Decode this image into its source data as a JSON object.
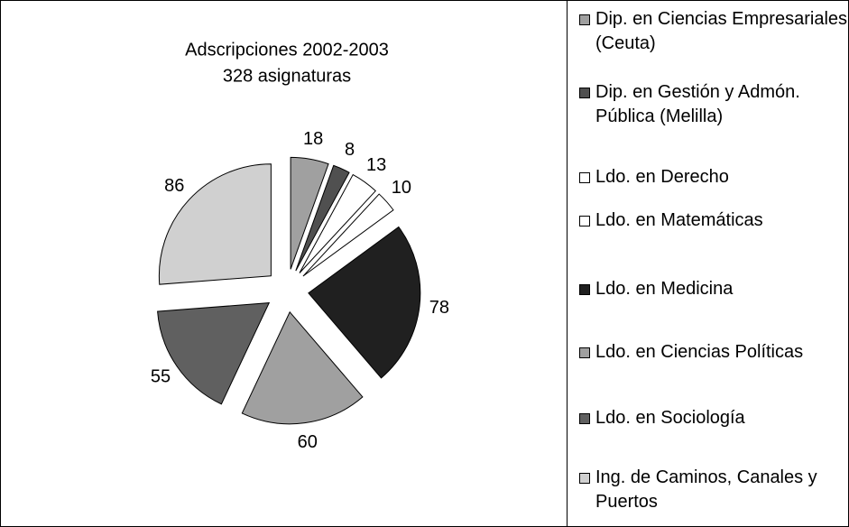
{
  "chart_data": {
    "type": "pie",
    "title": "Adscripciones 2002-2003",
    "subtitle": "328 asignaturas",
    "categories": [
      "Dip. en Ciencias Empresariales (Ceuta)",
      "Dip. en Gestión y Admón. Pública (Melilla)",
      "Ldo. en Derecho",
      "Ldo. en Matemáticas",
      "Ldo. en Medicina",
      "Ldo. en Ciencias Políticas",
      "Ldo. en Sociología",
      "Ing. de Caminos, Canales y Puertos"
    ],
    "values": [
      18,
      8,
      13,
      10,
      78,
      60,
      55,
      86
    ],
    "colors": [
      "#a0a0a0",
      "#505050",
      "#ffffff",
      "#ffffff",
      "#202020",
      "#a0a0a0",
      "#606060",
      "#d0d0d0"
    ],
    "legend": "right"
  }
}
